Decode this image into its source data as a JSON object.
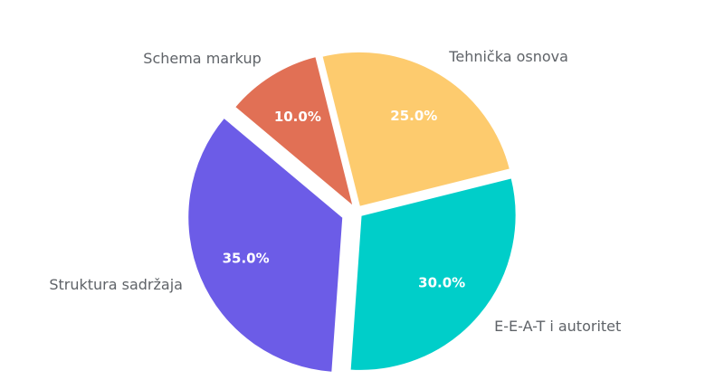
{
  "chart_data": {
    "type": "pie",
    "categories": [
      "Tehnička osnova",
      "E-E-A-T i autoritet",
      "Struktura sadržaja",
      "Schema markup"
    ],
    "values": [
      25,
      30,
      35,
      10
    ],
    "value_labels": [
      "25.0%",
      "30.0%",
      "35.0%",
      "10.0%"
    ],
    "colors": [
      "#fdcb6e",
      "#00cec9",
      "#6c5ce7",
      "#e17055"
    ]
  }
}
